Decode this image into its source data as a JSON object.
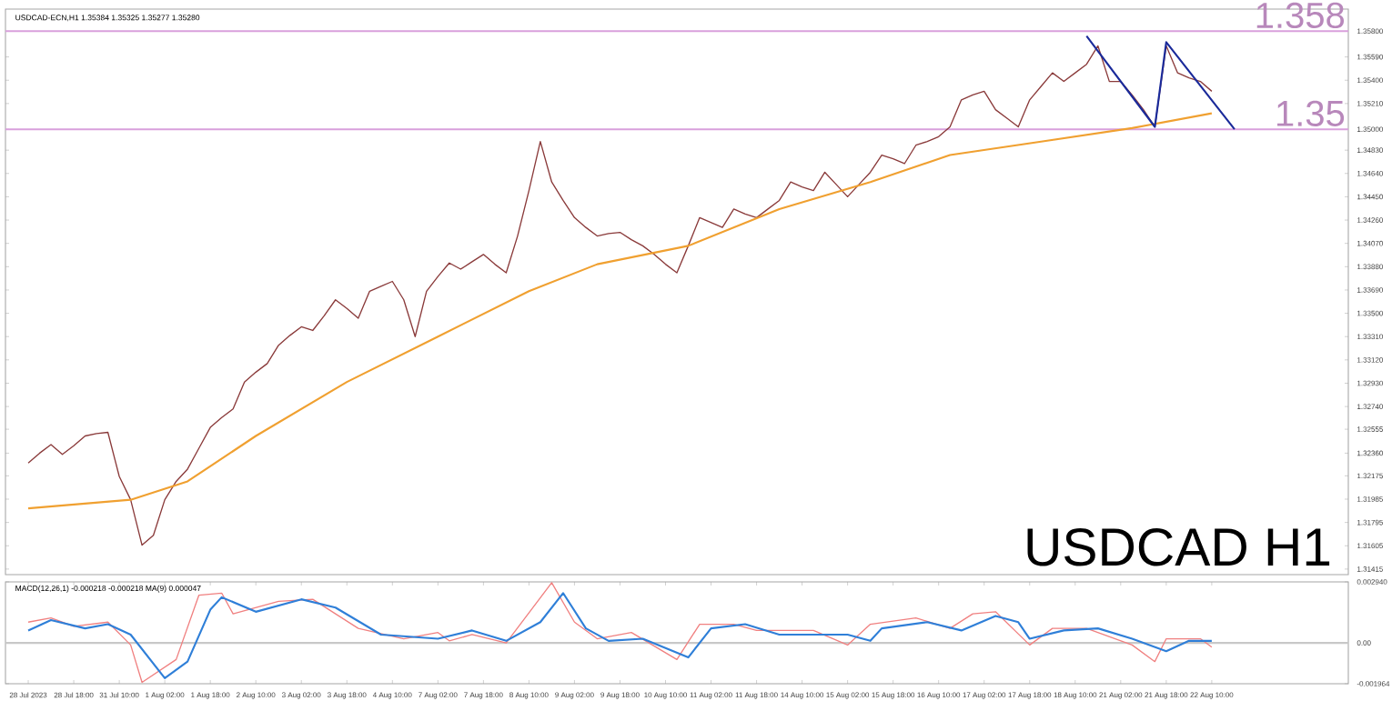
{
  "chart_data": [
    {
      "type": "line",
      "title": "USDCAD-ECN,H1  1.35384 1.35325 1.35277 1.35280",
      "annotations": [
        "USDCAD H1"
      ],
      "categories": [
        null,
        null,
        null,
        null,
        null,
        null,
        null,
        null,
        null,
        null,
        null,
        null,
        null,
        null,
        null,
        null,
        null,
        null,
        null,
        null,
        null,
        null,
        null,
        null,
        null,
        null,
        null,
        null,
        null,
        null,
        null,
        null,
        null,
        null,
        null,
        null,
        null,
        null,
        null,
        null,
        null,
        null,
        null,
        null,
        null,
        null,
        null,
        null,
        null,
        null,
        null,
        null,
        null,
        null,
        null,
        null,
        null,
        null,
        null,
        null,
        null,
        null,
        null,
        null,
        null,
        null,
        null,
        null,
        null,
        null,
        null,
        null,
        null,
        null,
        null,
        null,
        null,
        null,
        null,
        null,
        null,
        null,
        null,
        null,
        null,
        null,
        null,
        null,
        null,
        null,
        null,
        null,
        null,
        null,
        null,
        null,
        null,
        null,
        null,
        null,
        null,
        null,
        null,
        null,
        null,
        null,
        null,
        null,
        null,
        null,
        null,
        null,
        null,
        null,
        null,
        null,
        null
      ],
      "ylim": [
        1.3137,
        1.3598
      ],
      "tick_labels": "y",
      "grid": false,
      "yticks": [
        {
          "value": 1.31415,
          "label": "1.31415"
        },
        {
          "value": 1.31605,
          "label": "1.31605"
        },
        {
          "value": 1.31795,
          "label": "1.31795"
        },
        {
          "value": 1.31985,
          "label": "1.31985"
        },
        {
          "value": 1.32175,
          "label": "1.32175"
        },
        {
          "value": 1.3236,
          "label": "1.32360"
        },
        {
          "value": 1.32555,
          "label": "1.32555"
        },
        {
          "value": 1.3274,
          "label": "1.32740"
        },
        {
          "value": 1.3293,
          "label": "1.32930"
        },
        {
          "value": 1.3312,
          "label": "1.33120"
        },
        {
          "value": 1.3331,
          "label": "1.33310"
        },
        {
          "value": 1.335,
          "label": "1.33500"
        },
        {
          "value": 1.3369,
          "label": "1.33690"
        },
        {
          "value": 1.3388,
          "label": "1.33880"
        },
        {
          "value": 1.3407,
          "label": "1.34070"
        },
        {
          "value": 1.3426,
          "label": "1.34260"
        },
        {
          "value": 1.3445,
          "label": "1.34450"
        },
        {
          "value": 1.3464,
          "label": "1.34640"
        },
        {
          "value": 1.3483,
          "label": "1.34830"
        },
        {
          "value": 1.35,
          "label": "1.35000"
        },
        {
          "value": 1.3521,
          "label": "1.35210"
        },
        {
          "value": 1.354,
          "label": "1.35400"
        },
        {
          "value": 1.3559,
          "label": "1.35590"
        },
        {
          "value": 1.358,
          "label": "1.35800"
        }
      ],
      "ref_lines": [
        {
          "axis": "y",
          "value": 1.358,
          "label": "1.358",
          "color": "#d9a0dc"
        },
        {
          "axis": "y",
          "value": 1.35,
          "label": "1.35",
          "color": "#d9a0dc"
        }
      ],
      "series": [
        {
          "color": "#8a3a3a",
          "values": [
            1.3228,
            1.3236,
            1.3243,
            1.3235,
            1.3242,
            1.325,
            1.3252,
            1.3253,
            1.3217,
            1.3198,
            1.3161,
            1.3169,
            1.3198,
            1.3213,
            1.3223,
            1.324,
            1.3257,
            1.3265,
            1.3272,
            1.3294,
            1.3302,
            1.3309,
            1.3324,
            1.3332,
            1.3339,
            1.3336,
            1.3348,
            1.3361,
            1.3354,
            1.3346,
            1.3368,
            1.3372,
            1.3376,
            1.3361,
            1.3331,
            1.3368,
            1.338,
            1.3391,
            1.3386,
            1.3392,
            1.3398,
            1.339,
            1.3383,
            1.3413,
            1.345,
            1.349,
            1.3457,
            1.3442,
            1.3428,
            1.342,
            1.3413,
            1.3415,
            1.3416,
            1.341,
            1.3405,
            1.3398,
            1.339,
            1.3383,
            1.3405,
            1.3428,
            1.3424,
            1.342,
            1.3435,
            1.3431,
            1.3428,
            1.3435,
            1.3442,
            1.3457,
            1.3453,
            1.345,
            1.3465,
            1.3455,
            1.3445,
            1.3455,
            1.3465,
            1.3479,
            1.3476,
            1.3472,
            1.3487,
            1.349,
            1.3494,
            1.3502,
            1.3524,
            1.3528,
            1.3531,
            1.3516,
            1.3509,
            1.3502,
            1.3524,
            1.3535,
            1.3546,
            1.3539,
            1.3546,
            1.3553,
            1.3568,
            1.3539,
            1.3539,
            1.3528,
            1.3516,
            1.3502,
            1.3568,
            1.3546,
            1.3542,
            1.3539,
            1.3531,
            null,
            null,
            null,
            null,
            null,
            null,
            null,
            null,
            null,
            null,
            null,
            null
          ]
        },
        {
          "color": "#f0a030",
          "values": [
            1.3191,
            null,
            null,
            null,
            null,
            null,
            null,
            null,
            null,
            1.3198,
            null,
            null,
            null,
            null,
            1.3213,
            null,
            null,
            null,
            null,
            null,
            1.325,
            null,
            null,
            null,
            null,
            null,
            null,
            null,
            1.3294,
            null,
            null,
            null,
            null,
            null,
            null,
            null,
            1.3331,
            null,
            null,
            null,
            null,
            null,
            null,
            null,
            1.3368,
            null,
            null,
            null,
            null,
            null,
            1.339,
            null,
            null,
            null,
            null,
            null,
            null,
            null,
            1.3405,
            null,
            null,
            null,
            null,
            null,
            null,
            null,
            1.3435,
            null,
            null,
            null,
            null,
            null,
            null,
            null,
            1.3457,
            null,
            null,
            null,
            null,
            null,
            null,
            1.3479,
            null,
            null,
            null,
            null,
            null,
            null,
            null,
            1.349,
            null,
            null,
            null,
            null,
            null,
            null,
            null,
            1.3501,
            null,
            null,
            null,
            null,
            null,
            null,
            1.3513,
            null,
            null,
            null,
            null,
            null,
            null,
            null,
            null,
            null,
            null,
            null,
            null
          ]
        },
        {
          "color": "#1a2a9a",
          "values": [
            null,
            null,
            null,
            null,
            null,
            null,
            null,
            null,
            null,
            null,
            null,
            null,
            null,
            null,
            null,
            null,
            null,
            null,
            null,
            null,
            null,
            null,
            null,
            null,
            null,
            null,
            null,
            null,
            null,
            null,
            null,
            null,
            null,
            null,
            null,
            null,
            null,
            null,
            null,
            null,
            null,
            null,
            null,
            null,
            null,
            null,
            null,
            null,
            null,
            null,
            null,
            null,
            null,
            null,
            null,
            null,
            null,
            null,
            null,
            null,
            null,
            null,
            null,
            null,
            null,
            null,
            null,
            null,
            null,
            null,
            null,
            null,
            null,
            null,
            null,
            null,
            null,
            null,
            null,
            null,
            null,
            null,
            null,
            null,
            null,
            null,
            null,
            null,
            null,
            null,
            null,
            null,
            null,
            1.3576,
            null,
            null,
            null,
            null,
            null,
            1.3502,
            1.3571,
            null,
            null,
            null,
            null,
            null,
            1.35,
            null,
            null,
            null,
            null,
            null,
            null,
            null,
            null,
            null,
            null
          ]
        }
      ]
    },
    {
      "type": "line",
      "title": "MACD(12,26,1) -0.000218 -0.000218  MA(9) 0.000047",
      "categories": [
        "28 Jul 2023",
        null,
        null,
        null,
        "28 Jul 18:00",
        null,
        null,
        null,
        "31 Jul 10:00",
        null,
        null,
        null,
        "1 Aug 02:00",
        null,
        null,
        null,
        "1 Aug 18:00",
        null,
        null,
        null,
        "2 Aug 10:00",
        null,
        null,
        null,
        "3 Aug 02:00",
        null,
        null,
        null,
        "3 Aug 18:00",
        null,
        null,
        null,
        "4 Aug 10:00",
        null,
        null,
        null,
        "7 Aug 02:00",
        null,
        null,
        null,
        "7 Aug 18:00",
        null,
        null,
        null,
        "8 Aug 10:00",
        null,
        null,
        null,
        "9 Aug 02:00",
        null,
        null,
        null,
        "9 Aug 18:00",
        null,
        null,
        null,
        "10 Aug 10:00",
        null,
        null,
        null,
        "11 Aug 02:00",
        null,
        null,
        null,
        "11 Aug 18:00",
        null,
        null,
        null,
        "14 Aug 10:00",
        null,
        null,
        null,
        "15 Aug 02:00",
        null,
        null,
        null,
        "15 Aug 18:00",
        null,
        null,
        null,
        "16 Aug 10:00",
        null,
        null,
        null,
        "17 Aug 02:00",
        null,
        null,
        null,
        "17 Aug 18:00",
        null,
        null,
        null,
        "18 Aug 10:00",
        null,
        null,
        null,
        "21 Aug 02:00",
        null,
        null,
        null,
        "21 Aug 18:00",
        null,
        null,
        null,
        "22 Aug 10:00",
        null,
        null,
        null,
        null,
        null,
        null,
        null,
        null,
        null,
        null,
        null,
        null
      ],
      "ylim": [
        -0.001964,
        0.00294
      ],
      "grid": false,
      "yticks": [
        {
          "value": 0.00294,
          "label": "0.002940"
        },
        {
          "value": 0,
          "label": "0.00"
        },
        {
          "value": -0.001964,
          "label": "-0.001964"
        }
      ],
      "ref_lines": [
        {
          "axis": "y",
          "value": 0,
          "color": "#c8c8c8"
        }
      ],
      "series": [
        {
          "color": "#f08080",
          "values": [
            0.001,
            null,
            0.0012,
            null,
            0.0008,
            null,
            null,
            0.001,
            null,
            -0.0001,
            -0.0019,
            null,
            null,
            -0.0008,
            null,
            0.0023,
            null,
            0.0024,
            0.0014,
            null,
            null,
            null,
            0.002,
            null,
            null,
            0.0021,
            null,
            null,
            null,
            0.0007,
            null,
            null,
            null,
            0.0002,
            null,
            null,
            0.0005,
            0.0001,
            null,
            0.0004,
            null,
            null,
            0,
            null,
            null,
            null,
            0.0029,
            null,
            0.001,
            null,
            0.0002,
            null,
            null,
            0.0005,
            null,
            null,
            null,
            -0.0008,
            null,
            0.0009,
            null,
            null,
            0.0009,
            null,
            0.0006,
            null,
            null,
            null,
            null,
            0.0006,
            null,
            null,
            -0.0001,
            null,
            0.0009,
            null,
            null,
            null,
            0.0012,
            null,
            null,
            0.0007,
            null,
            0.0014,
            null,
            0.0015,
            null,
            null,
            -0.0001,
            null,
            0.0007,
            null,
            null,
            0.0007,
            null,
            null,
            null,
            -0.0001,
            null,
            -0.0009,
            0.0002,
            null,
            null,
            0.0002,
            -0.0002,
            null,
            null,
            null,
            null,
            null,
            null,
            null,
            null,
            null,
            null,
            null,
            null
          ]
        },
        {
          "color": "#2f7fd8",
          "values": [
            0.0006,
            null,
            0.0011,
            null,
            null,
            0.0007,
            null,
            0.0009,
            null,
            0.0004,
            null,
            null,
            -0.0017,
            null,
            -0.0009,
            null,
            0.0016,
            0.0022,
            null,
            null,
            0.0015,
            null,
            null,
            null,
            0.0021,
            null,
            null,
            0.0017,
            null,
            null,
            null,
            0.0004,
            null,
            null,
            null,
            null,
            0.0002,
            null,
            null,
            0.0006,
            null,
            null,
            0.0001,
            null,
            null,
            0.001,
            null,
            0.0024,
            null,
            0.0007,
            null,
            0.0001,
            null,
            null,
            0.0002,
            null,
            null,
            null,
            -0.0007,
            null,
            0.0007,
            null,
            null,
            0.0009,
            null,
            null,
            0.0004,
            null,
            null,
            null,
            null,
            null,
            0.0004,
            null,
            0.0001,
            0.0007,
            null,
            null,
            null,
            0.001,
            null,
            null,
            0.0006,
            null,
            null,
            0.0013,
            null,
            0.001,
            0.0002,
            null,
            null,
            0.0006,
            null,
            null,
            0.0007,
            null,
            null,
            0.0002,
            null,
            null,
            -0.0004,
            null,
            0.0001,
            null,
            0.0001,
            null,
            null,
            null,
            null,
            null,
            null,
            null,
            null,
            null,
            null,
            null,
            null
          ]
        }
      ]
    }
  ]
}
